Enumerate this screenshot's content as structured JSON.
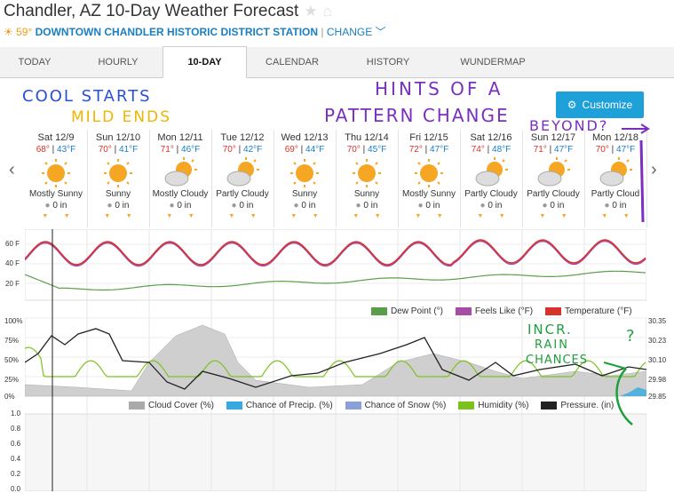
{
  "header": {
    "title": "Chandler, AZ 10-Day Weather Forecast",
    "temp": "59°",
    "station": "DOWNTOWN CHANDLER HISTORIC DISTRICT STATION",
    "separator": "|",
    "change": "CHANGE"
  },
  "tabs": [
    {
      "label": "TODAY"
    },
    {
      "label": "HOURLY"
    },
    {
      "label": "10-DAY"
    },
    {
      "label": "CALENDAR"
    },
    {
      "label": "HISTORY"
    },
    {
      "label": "WUNDERMAP"
    }
  ],
  "customize": {
    "label": "Customize"
  },
  "days": [
    {
      "name": "Sat 12/9",
      "hi": "68°",
      "lo": "43°F",
      "cond": "Mostly Sunny",
      "precip": "0 in"
    },
    {
      "name": "Sun 12/10",
      "hi": "70°",
      "lo": "41°F",
      "cond": "Sunny",
      "precip": "0 in"
    },
    {
      "name": "Mon 12/11",
      "hi": "71°",
      "lo": "46°F",
      "cond": "Mostly Cloudy",
      "precip": "0 in"
    },
    {
      "name": "Tue 12/12",
      "hi": "70°",
      "lo": "42°F",
      "cond": "Partly Cloudy",
      "precip": "0 in"
    },
    {
      "name": "Wed 12/13",
      "hi": "69°",
      "lo": "44°F",
      "cond": "Sunny",
      "precip": "0 in"
    },
    {
      "name": "Thu 12/14",
      "hi": "70°",
      "lo": "45°F",
      "cond": "Sunny",
      "precip": "0 in"
    },
    {
      "name": "Fri 12/15",
      "hi": "72°",
      "lo": "47°F",
      "cond": "Mostly Sunny",
      "precip": "0 in"
    },
    {
      "name": "Sat 12/16",
      "hi": "74°",
      "lo": "48°F",
      "cond": "Partly Cloudy",
      "precip": "0 in"
    },
    {
      "name": "Sun 12/17",
      "hi": "71°",
      "lo": "47°F",
      "cond": "Partly Cloudy",
      "precip": "0 in"
    },
    {
      "name": "Mon 12/18",
      "hi": "70°",
      "lo": "47°F",
      "cond": "Partly Cloud",
      "precip": "0 in"
    }
  ],
  "temp_chart": {
    "yticks": [
      "60 F",
      "40 F",
      "20 F"
    ],
    "legend": [
      {
        "label": "Dew Point (°)",
        "color": "#5a9e4a"
      },
      {
        "label": "Feels Like (°F)",
        "color": "#a64ca6"
      },
      {
        "label": "Temperature (°F)",
        "color": "#d8322b"
      }
    ]
  },
  "cloud_chart": {
    "yticks_left": [
      "100%",
      "75%",
      "50%",
      "25%",
      "0%"
    ],
    "yticks_right": [
      "30.35",
      "30.23",
      "30.10",
      "29.98",
      "29.85"
    ],
    "legend": [
      {
        "label": "Cloud Cover (%)",
        "color": "#aaaaaa"
      },
      {
        "label": "Chance of Precip. (%)",
        "color": "#35a9e0"
      },
      {
        "label": "Chance of Snow (%)",
        "color": "#8aa0d8"
      },
      {
        "label": "Humidity (%)",
        "color": "#7cc21d"
      },
      {
        "label": "Pressure. (in)",
        "color": "#222222"
      }
    ]
  },
  "precip_chart": {
    "yticks": [
      "1.0",
      "0.8",
      "0.6",
      "0.4",
      "0.2",
      "0.0"
    ]
  },
  "annotations": {
    "cool_starts": "COOL STARTS",
    "mild_ends": "MILD ENDS",
    "hints": "HINTS OF A",
    "pattern": "PATTERN CHANGE",
    "beyond": "BEYOND?",
    "incr": "INCR.",
    "rain": "RAIN",
    "chances": "CHANCES",
    "q": "?"
  }
}
